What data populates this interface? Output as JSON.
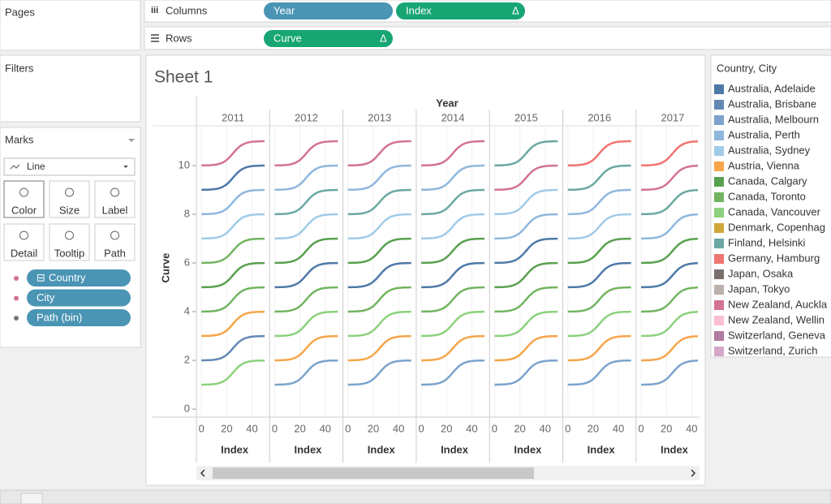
{
  "shelves": {
    "pages": "Pages",
    "columns_label": "Columns",
    "rows_label": "Rows",
    "columns": [
      {
        "name": "Year",
        "color": "#4a94b4"
      },
      {
        "name": "Index",
        "color": "#17a673",
        "flag": "Δ"
      }
    ],
    "rows": [
      {
        "name": "Curve",
        "color": "#17a673",
        "flag": "Δ"
      }
    ]
  },
  "filters": "Filters",
  "marks": {
    "title": "Marks",
    "type": "Line",
    "buttons": [
      "Color",
      "Size",
      "Label",
      "Detail",
      "Tooltip",
      "Path"
    ],
    "pills": [
      {
        "name": "Country",
        "flag": "⊟"
      },
      {
        "name": "City"
      },
      {
        "name": "Path (bin)"
      }
    ]
  },
  "sheet_title": "Sheet 1",
  "chart_data": {
    "type": "line",
    "column_header": "Year",
    "y_label": "Curve",
    "x_label": "Index",
    "ylim": [
      -0.33,
      11.63
    ],
    "yticks": [
      0,
      2,
      4,
      6,
      8,
      10
    ],
    "xlim": [
      -4,
      54
    ],
    "xticks": [
      0,
      20,
      40
    ],
    "x": [
      0,
      50
    ],
    "panels": [
      {
        "year": "2011",
        "from": [
          1,
          2,
          3,
          4,
          5,
          6,
          7,
          8,
          9,
          10
        ],
        "to": [
          2,
          3,
          4,
          5,
          6,
          7,
          8,
          9,
          10,
          11
        ],
        "colors": [
          "#8cd17d",
          "#6388b4",
          "#f7a549",
          "#73b460",
          "#59a14f",
          "#73b460",
          "#a0cbe8",
          "#8fb7de",
          "#4e79a7",
          "#d37295"
        ]
      },
      {
        "year": "2012",
        "from": [
          1,
          2,
          3,
          4,
          5,
          6,
          7,
          8,
          9,
          10
        ],
        "to": [
          2,
          3,
          4,
          5,
          6,
          7,
          8,
          9,
          10,
          11
        ],
        "colors": [
          "#7ba3cc",
          "#f7a549",
          "#8cd17d",
          "#73b460",
          "#4e79a7",
          "#59a14f",
          "#a0cbe8",
          "#6ba8a2",
          "#8fb7de",
          "#d37295"
        ]
      },
      {
        "year": "2013",
        "from": [
          1,
          2,
          3,
          4,
          5,
          6,
          7,
          8,
          9,
          10
        ],
        "to": [
          2,
          3,
          4,
          5,
          6,
          7,
          8,
          9,
          10,
          11
        ],
        "colors": [
          "#7ba3cc",
          "#f7a549",
          "#8cd17d",
          "#73b460",
          "#4e79a7",
          "#59a14f",
          "#a0cbe8",
          "#6ba8a2",
          "#8fb7de",
          "#d37295"
        ]
      },
      {
        "year": "2014",
        "from": [
          1,
          2,
          3,
          4,
          5,
          6,
          7,
          8,
          9,
          10
        ],
        "to": [
          2,
          3,
          4,
          5,
          6,
          7,
          8,
          9,
          10,
          11
        ],
        "colors": [
          "#7ba3cc",
          "#f7a549",
          "#8cd17d",
          "#73b460",
          "#4e79a7",
          "#59a14f",
          "#a0cbe8",
          "#6ba8a2",
          "#8fb7de",
          "#d37295"
        ]
      },
      {
        "year": "2015",
        "from": [
          1,
          2,
          3,
          4,
          5,
          6,
          7,
          8,
          9,
          10
        ],
        "to": [
          2,
          3,
          4,
          5,
          6,
          7,
          8,
          9,
          10,
          11
        ],
        "colors": [
          "#7ba3cc",
          "#f7a549",
          "#8cd17d",
          "#73b460",
          "#59a14f",
          "#4e79a7",
          "#8fb7de",
          "#a0cbe8",
          "#d37295",
          "#6ba8a2"
        ]
      },
      {
        "year": "2016",
        "from": [
          1,
          2,
          3,
          4,
          5,
          6,
          7,
          8,
          9,
          10
        ],
        "to": [
          2,
          3,
          4,
          5,
          6,
          7,
          8,
          9,
          10,
          11
        ],
        "colors": [
          "#7ba3cc",
          "#f7a549",
          "#8cd17d",
          "#73b460",
          "#4e79a7",
          "#59a14f",
          "#a0cbe8",
          "#8fb7de",
          "#6ba8a2",
          "#f07470"
        ]
      },
      {
        "year": "2017",
        "from": [
          1,
          2,
          3,
          4,
          5,
          6,
          7,
          8,
          9,
          10
        ],
        "to": [
          2,
          3,
          4,
          5,
          6,
          7,
          8,
          9,
          10,
          11
        ],
        "colors": [
          "#7ba3cc",
          "#f7a549",
          "#8cd17d",
          "#73b460",
          "#4e79a7",
          "#59a14f",
          "#8fb7de",
          "#6ba8a2",
          "#d37295",
          "#f07470"
        ]
      }
    ]
  },
  "legend": {
    "title": "Country, City",
    "items": [
      {
        "name": "Australia, Adelaide",
        "color": "#4e79a7"
      },
      {
        "name": "Australia, Brisbane",
        "color": "#6388b4"
      },
      {
        "name": "Australia, Melbourn",
        "color": "#7ba3cc"
      },
      {
        "name": "Australia, Perth",
        "color": "#8fb7de"
      },
      {
        "name": "Australia, Sydney",
        "color": "#a0cbe8"
      },
      {
        "name": "Austria, Vienna",
        "color": "#f7a549"
      },
      {
        "name": "Canada, Calgary",
        "color": "#59a14f"
      },
      {
        "name": "Canada, Toronto",
        "color": "#73b460"
      },
      {
        "name": "Canada, Vancouver",
        "color": "#8cd17d"
      },
      {
        "name": "Denmark, Copenhag",
        "color": "#d1a73a"
      },
      {
        "name": "Finland, Helsinki",
        "color": "#6ba8a2"
      },
      {
        "name": "Germany, Hamburg",
        "color": "#f07470"
      },
      {
        "name": "Japan, Osaka",
        "color": "#79706e"
      },
      {
        "name": "Japan, Tokyo",
        "color": "#bab0ac"
      },
      {
        "name": "New Zealand, Auckla",
        "color": "#d37295"
      },
      {
        "name": "New Zealand, Wellin",
        "color": "#fabfd2"
      },
      {
        "name": "Switzerland, Geneva",
        "color": "#b07aa1"
      },
      {
        "name": "Switzerland, Zurich",
        "color": "#d4a6c8"
      }
    ]
  }
}
